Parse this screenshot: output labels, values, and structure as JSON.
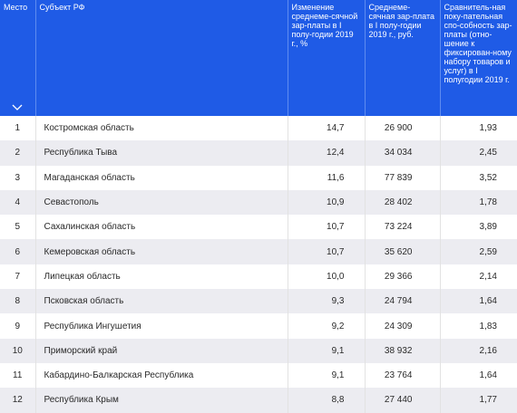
{
  "table": {
    "headers": {
      "rank": "Место",
      "region": "Субъект РФ",
      "change": "Изменение среднеме-сячной зар-платы в I полу-годии 2019 г., %",
      "salary": "Среднеме-сячная зар-плата в I полу-годии 2019 г., руб.",
      "power": "Сравнитель-ная поку-пательная спо-собность зар-платы (отно-шение к фиксирован-ному набору товаров и услуг) в I полугодии 2019 г."
    },
    "rows": [
      {
        "rank": "1",
        "region": "Костромская область",
        "change": "14,7",
        "salary": "26 900",
        "power": "1,93"
      },
      {
        "rank": "2",
        "region": "Республика Тыва",
        "change": "12,4",
        "salary": "34 034",
        "power": "2,45"
      },
      {
        "rank": "3",
        "region": "Магаданская область",
        "change": "11,6",
        "salary": "77 839",
        "power": "3,52"
      },
      {
        "rank": "4",
        "region": "Севастополь",
        "change": "10,9",
        "salary": "28 402",
        "power": "1,78"
      },
      {
        "rank": "5",
        "region": "Сахалинская область",
        "change": "10,7",
        "salary": "73 224",
        "power": "3,89"
      },
      {
        "rank": "6",
        "region": "Кемеровская область",
        "change": "10,7",
        "salary": "35 620",
        "power": "2,59"
      },
      {
        "rank": "7",
        "region": "Липецкая область",
        "change": "10,0",
        "salary": "29 366",
        "power": "2,14"
      },
      {
        "rank": "8",
        "region": "Псковская область",
        "change": "9,3",
        "salary": "24 794",
        "power": "1,64"
      },
      {
        "rank": "9",
        "region": "Республика Ингушетия",
        "change": "9,2",
        "salary": "24 309",
        "power": "1,83"
      },
      {
        "rank": "10",
        "region": "Приморский край",
        "change": "9,1",
        "salary": "38 932",
        "power": "2,16"
      },
      {
        "rank": "11",
        "region": "Кабардино-Балкарская Республика",
        "change": "9,1",
        "salary": "23 764",
        "power": "1,64"
      },
      {
        "rank": "12",
        "region": "Республика Крым",
        "change": "8,8",
        "salary": "27 440",
        "power": "1,77"
      }
    ]
  },
  "colors": {
    "header_bg": "#1f5be6",
    "header_text": "#ffffff",
    "row_alt_bg": "#ececf1"
  },
  "icons": {
    "sort": "chevron-down-icon"
  }
}
